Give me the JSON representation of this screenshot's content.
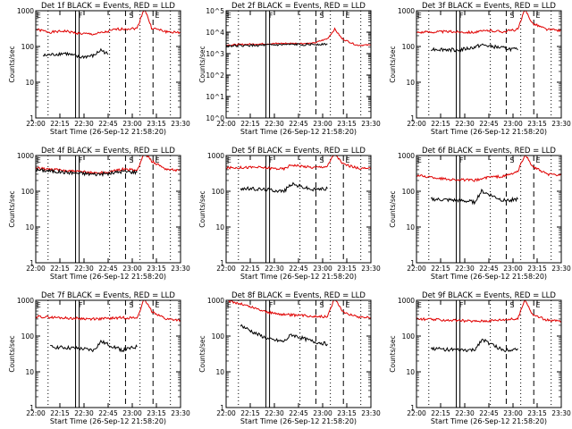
{
  "colors": {
    "events": "#000000",
    "lld": "#e00000",
    "axes": "#000000",
    "background": "#ffffff"
  },
  "chart_data": [
    {
      "type": "line",
      "title": "Det 1f BLACK = Events, RED = LLD",
      "xlabel": "Start Time (26-Sep-12 21:58:20)",
      "ylabel": "Counts/sec",
      "y_scale": "log",
      "ylim": [
        1,
        1000
      ],
      "y_ticks": [
        "1",
        "10",
        "100",
        "1000"
      ],
      "x_ticks": [
        "22:00",
        "22:15",
        "22:30",
        "22:45",
        "23:00",
        "23:15",
        "23:30"
      ],
      "markers": [
        "E",
        "F",
        "S",
        "E"
      ],
      "series": [
        {
          "color": "red",
          "x": [
            0.0,
            0.1,
            0.2,
            0.3,
            0.4,
            0.5,
            0.55,
            0.6,
            0.7,
            0.75,
            0.8,
            0.9,
            1.0
          ],
          "y": [
            300,
            250,
            270,
            230,
            220,
            260,
            300,
            310,
            320,
            1200,
            330,
            260,
            240
          ]
        },
        {
          "color": "black",
          "x": [
            0.05,
            0.2,
            0.3,
            0.4,
            0.45,
            0.5
          ],
          "y": [
            55,
            65,
            50,
            55,
            80,
            60
          ]
        }
      ]
    },
    {
      "type": "line",
      "title": "Det 2f BLACK = Events, RED = LLD",
      "xlabel": "Start Time (26-Sep-12 21:58:20)",
      "ylabel": "Counts/sec",
      "y_scale": "log",
      "ylim": [
        1,
        100000
      ],
      "y_ticks": [
        "10^0",
        "10^1",
        "10^2",
        "10^3",
        "10^4",
        "10^5"
      ],
      "x_ticks": [
        "22:00",
        "22:15",
        "22:30",
        "22:45",
        "23:00",
        "23:15",
        "23:30"
      ],
      "markers": [
        "E",
        "F",
        "S",
        "E"
      ],
      "series": [
        {
          "color": "red",
          "x": [
            0.0,
            0.2,
            0.4,
            0.6,
            0.7,
            0.75,
            0.8,
            0.9,
            1.0
          ],
          "y": [
            2500,
            2800,
            3000,
            3000,
            5000,
            14000,
            5000,
            2500,
            2500
          ]
        },
        {
          "color": "black",
          "x": [
            0.0,
            0.2,
            0.4,
            0.6,
            0.7
          ],
          "y": [
            2300,
            2400,
            2600,
            2700,
            2800
          ]
        }
      ]
    },
    {
      "type": "line",
      "title": "Det 3f BLACK = Events, RED = LLD",
      "xlabel": "Start Time (26-Sep-12 21:58:20)",
      "ylabel": "Counts/sec",
      "y_scale": "log",
      "ylim": [
        1,
        1000
      ],
      "y_ticks": [
        "1",
        "10",
        "100",
        "1000"
      ],
      "x_ticks": [
        "22:00",
        "22:15",
        "22:30",
        "22:45",
        "23:00",
        "23:15",
        "23:30"
      ],
      "markers": [
        "E",
        "F",
        "S",
        "E"
      ],
      "series": [
        {
          "color": "red",
          "x": [
            0.0,
            0.2,
            0.4,
            0.5,
            0.6,
            0.7,
            0.75,
            0.8,
            0.9,
            1.0
          ],
          "y": [
            250,
            260,
            250,
            280,
            260,
            300,
            1100,
            450,
            300,
            280
          ]
        },
        {
          "color": "black",
          "x": [
            0.1,
            0.3,
            0.4,
            0.45,
            0.6,
            0.7
          ],
          "y": [
            85,
            80,
            95,
            110,
            90,
            80
          ]
        }
      ]
    },
    {
      "type": "line",
      "title": "Det 4f BLACK = Events, RED = LLD",
      "xlabel": "Start Time (26-Sep-12 21:58:20)",
      "ylabel": "Counts/sec",
      "y_scale": "log",
      "ylim": [
        1,
        1000
      ],
      "y_ticks": [
        "1",
        "10",
        "100",
        "1000"
      ],
      "x_ticks": [
        "22:00",
        "22:15",
        "22:30",
        "22:45",
        "23:00",
        "23:15",
        "23:30"
      ],
      "markers": [
        "E",
        "F",
        "S",
        "E"
      ],
      "series": [
        {
          "color": "red",
          "x": [
            0.0,
            0.2,
            0.4,
            0.5,
            0.6,
            0.7,
            0.75,
            0.8,
            0.9,
            1.0
          ],
          "y": [
            450,
            380,
            330,
            340,
            420,
            380,
            1200,
            700,
            420,
            380
          ]
        },
        {
          "color": "black",
          "x": [
            0.0,
            0.2,
            0.4,
            0.5,
            0.6,
            0.7
          ],
          "y": [
            400,
            340,
            300,
            310,
            360,
            340
          ]
        }
      ]
    },
    {
      "type": "line",
      "title": "Det 5f BLACK = Events, RED = LLD",
      "xlabel": "Start Time (26-Sep-12 21:58:20)",
      "ylabel": "Counts/sec",
      "y_scale": "log",
      "ylim": [
        1,
        1000
      ],
      "y_ticks": [
        "1",
        "10",
        "100",
        "1000"
      ],
      "x_ticks": [
        "22:00",
        "22:15",
        "22:30",
        "22:45",
        "23:00",
        "23:15",
        "23:30"
      ],
      "markers": [
        "E",
        "F",
        "S",
        "E"
      ],
      "series": [
        {
          "color": "red",
          "x": [
            0.0,
            0.2,
            0.4,
            0.45,
            0.6,
            0.7,
            0.75,
            0.8,
            0.9,
            1.0
          ],
          "y": [
            450,
            470,
            420,
            550,
            460,
            500,
            1200,
            600,
            450,
            420
          ]
        },
        {
          "color": "black",
          "x": [
            0.1,
            0.3,
            0.4,
            0.45,
            0.6,
            0.7
          ],
          "y": [
            120,
            110,
            100,
            160,
            110,
            120
          ]
        }
      ]
    },
    {
      "type": "line",
      "title": "Det 6f BLACK = Events, RED = LLD",
      "xlabel": "Start Time (26-Sep-12 21:58:20)",
      "ylabel": "Counts/sec",
      "y_scale": "log",
      "ylim": [
        1,
        1000
      ],
      "y_ticks": [
        "1",
        "10",
        "100",
        "1000"
      ],
      "x_ticks": [
        "22:00",
        "22:15",
        "22:30",
        "22:45",
        "23:00",
        "23:15",
        "23:30"
      ],
      "markers": [
        "E",
        "F",
        "S",
        "E"
      ],
      "series": [
        {
          "color": "red",
          "x": [
            0.0,
            0.2,
            0.4,
            0.5,
            0.6,
            0.7,
            0.75,
            0.8,
            0.9,
            1.0
          ],
          "y": [
            280,
            220,
            200,
            250,
            260,
            350,
            1100,
            500,
            300,
            280
          ]
        },
        {
          "color": "black",
          "x": [
            0.1,
            0.3,
            0.4,
            0.45,
            0.6,
            0.7
          ],
          "y": [
            60,
            55,
            50,
            100,
            55,
            60
          ]
        }
      ]
    },
    {
      "type": "line",
      "title": "Det 7f BLACK = Events, RED = LLD",
      "xlabel": "Start Time (26-Sep-12 21:58:20)",
      "ylabel": "Counts/sec",
      "y_scale": "log",
      "ylim": [
        1,
        1000
      ],
      "y_ticks": [
        "1",
        "10",
        "100",
        "1000"
      ],
      "x_ticks": [
        "22:00",
        "22:15",
        "22:30",
        "22:45",
        "23:00",
        "23:15",
        "23:30"
      ],
      "markers": [
        "E",
        "F",
        "S",
        "E"
      ],
      "series": [
        {
          "color": "red",
          "x": [
            0.0,
            0.2,
            0.4,
            0.5,
            0.6,
            0.7,
            0.75,
            0.8,
            0.9,
            1.0
          ],
          "y": [
            350,
            320,
            300,
            310,
            330,
            320,
            1100,
            500,
            300,
            280
          ]
        },
        {
          "color": "black",
          "x": [
            0.1,
            0.3,
            0.4,
            0.45,
            0.6,
            0.7
          ],
          "y": [
            50,
            45,
            40,
            70,
            40,
            50
          ]
        }
      ]
    },
    {
      "type": "line",
      "title": "Det 8f BLACK = Events, RED = LLD",
      "xlabel": "Start Time (26-Sep-12 21:58:20)",
      "ylabel": "Counts/sec",
      "y_scale": "log",
      "ylim": [
        1,
        1000
      ],
      "y_ticks": [
        "1",
        "10",
        "100",
        "1000"
      ],
      "x_ticks": [
        "22:00",
        "22:15",
        "22:30",
        "22:45",
        "23:00",
        "23:15",
        "23:30"
      ],
      "markers": [
        "E",
        "F",
        "S",
        "E"
      ],
      "series": [
        {
          "color": "red",
          "x": [
            0.0,
            0.1,
            0.2,
            0.3,
            0.4,
            0.5,
            0.6,
            0.7,
            0.75,
            0.8,
            0.9,
            1.0
          ],
          "y": [
            1000,
            800,
            600,
            450,
            400,
            380,
            360,
            350,
            1200,
            500,
            350,
            330
          ]
        },
        {
          "color": "black",
          "x": [
            0.1,
            0.2,
            0.3,
            0.4,
            0.45,
            0.6,
            0.7
          ],
          "y": [
            200,
            120,
            80,
            70,
            110,
            70,
            60
          ]
        }
      ]
    },
    {
      "type": "line",
      "title": "Det 9f BLACK = Events, RED = LLD",
      "xlabel": "Start Time (26-Sep-12 21:58:20)",
      "ylabel": "Counts/sec",
      "y_scale": "log",
      "ylim": [
        1,
        1000
      ],
      "y_ticks": [
        "1",
        "10",
        "100",
        "1000"
      ],
      "x_ticks": [
        "22:00",
        "22:15",
        "22:30",
        "22:45",
        "23:00",
        "23:15",
        "23:30"
      ],
      "markers": [
        "E",
        "F",
        "S",
        "E"
      ],
      "series": [
        {
          "color": "red",
          "x": [
            0.0,
            0.2,
            0.4,
            0.5,
            0.6,
            0.7,
            0.75,
            0.8,
            0.9,
            1.0
          ],
          "y": [
            300,
            280,
            260,
            270,
            290,
            300,
            1100,
            400,
            280,
            260
          ]
        },
        {
          "color": "black",
          "x": [
            0.1,
            0.3,
            0.4,
            0.45,
            0.6,
            0.7
          ],
          "y": [
            45,
            40,
            40,
            80,
            40,
            45
          ]
        }
      ]
    }
  ]
}
